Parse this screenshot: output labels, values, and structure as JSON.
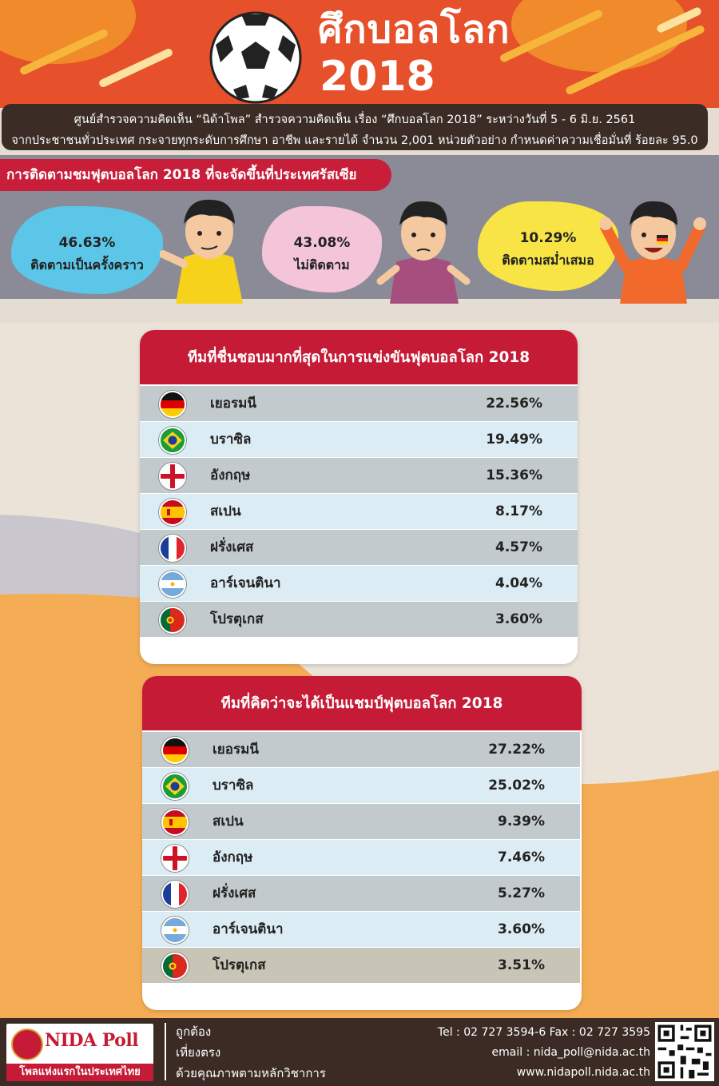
{
  "header": {
    "title_line1": "ศึกบอลโลก",
    "title_line2": "2018"
  },
  "info": {
    "line1": "ศูนย์สำรวจความคิดเห็น “นิด้าโพล” สำรวจความคิดเห็น เรื่อง  “ศึกบอลโลก 2018”  ระหว่างวันที่ 5 - 6 มิ.ย. 2561",
    "line2": "จากประชาชนทั่วประเทศ กระจายทุกระดับการศึกษา อาชีพ และรายได้ จำนวน 2,001 หน่วยตัวอย่าง กำหนดค่าความเชื่อมั่นที่ ร้อยละ 95.0"
  },
  "follow": {
    "title": "การติดตามชมฟุตบอลโลก 2018 ที่จะจัดขึ้นที่ประเทศรัสเซีย",
    "items": [
      {
        "pct": "46.63%",
        "label": "ติดตามเป็นครั้งคราว",
        "color": "#5bc6e8"
      },
      {
        "pct": "43.08%",
        "label": "ไม่ติดตาม",
        "color": "#f4c4d8"
      },
      {
        "pct": "10.29%",
        "label": "ติดตามสม่ำเสมอ",
        "color": "#f8e445"
      }
    ]
  },
  "favorite": {
    "title": "ทีมที่ชื่นชอบมากที่สุดในการแข่งขันฟุตบอลโลก 2018",
    "rows": [
      {
        "flag": "germany-flag-icon",
        "name": "เยอรมนี",
        "value": "22.56%"
      },
      {
        "flag": "brazil-flag-icon",
        "name": "บราซิล",
        "value": "19.49%"
      },
      {
        "flag": "england-flag-icon",
        "name": "อังกฤษ",
        "value": "15.36%"
      },
      {
        "flag": "spain-flag-icon",
        "name": "สเปน",
        "value": "8.17%"
      },
      {
        "flag": "france-flag-icon",
        "name": "ฝรั่งเศส",
        "value": "4.57%"
      },
      {
        "flag": "argentina-flag-icon",
        "name": "อาร์เจนตินา",
        "value": "4.04%"
      },
      {
        "flag": "portugal-flag-icon",
        "name": "โปรตุเกส",
        "value": "3.60%"
      }
    ]
  },
  "champion": {
    "title": "ทีมที่คิดว่าจะได้เป็นแชมป์ฟุตบอลโลก 2018",
    "rows": [
      {
        "flag": "germany-flag-icon",
        "name": "เยอรมนี",
        "value": "27.22%"
      },
      {
        "flag": "brazil-flag-icon",
        "name": "บราซิล",
        "value": "25.02%"
      },
      {
        "flag": "spain-flag-icon",
        "name": "สเปน",
        "value": "9.39%"
      },
      {
        "flag": "england-flag-icon",
        "name": "อังกฤษ",
        "value": "7.46%"
      },
      {
        "flag": "france-flag-icon",
        "name": "ฝรั่งเศส",
        "value": "5.27%"
      },
      {
        "flag": "argentina-flag-icon",
        "name": "อาร์เจนตินา",
        "value": "3.60%"
      },
      {
        "flag": "portugal-flag-icon",
        "name": "โปรตุเกส",
        "value": "3.51%"
      }
    ]
  },
  "footer": {
    "brand": "NIDA Poll",
    "tagline": "โพลแห่งแรกในประเทศไทย",
    "slogan": [
      "ถูกต้อง",
      "เที่ยงตรง",
      "ด้วยคุณภาพตามหลักวิชาการ"
    ],
    "tel": "Tel : 02 727 3594-6 Fax : 02 727 3595",
    "email": "email : nida_poll@nida.ac.th",
    "web": "www.nidapoll.nida.ac.th"
  },
  "colors": {
    "header_bg": "#e6512b",
    "accent_red": "#c61b36",
    "row_dark": "#c3cacd",
    "row_light": "#dcecf4",
    "footer_bg": "#3b2b24"
  }
}
